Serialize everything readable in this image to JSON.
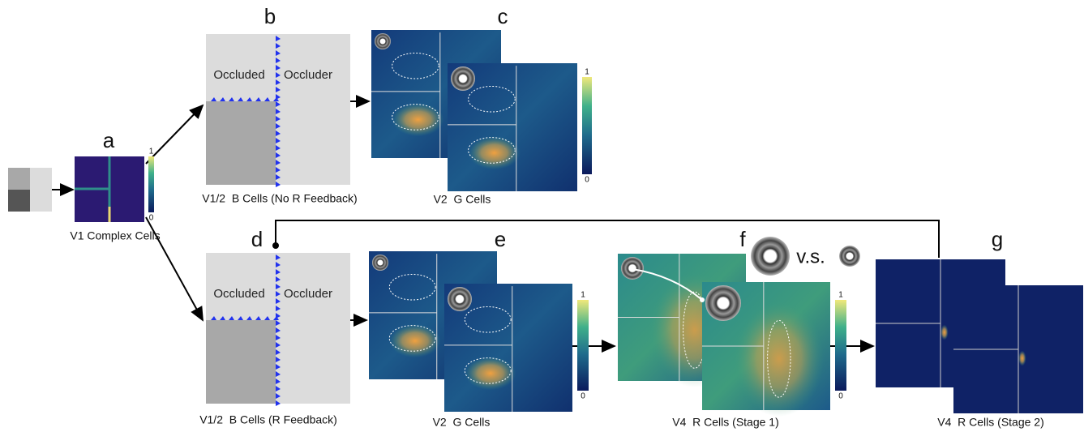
{
  "panels": [
    {
      "letter": "a",
      "caption": "V1 Complex Cells"
    },
    {
      "letter": "b",
      "caption": "V1/2  B Cells (No R Feedback)",
      "labels": [
        "Occluded",
        "Occluder"
      ]
    },
    {
      "letter": "c",
      "caption": "V2  G Cells"
    },
    {
      "letter": "d",
      "caption": "V1/2  B Cells (R Feedback)",
      "labels": [
        "Occluded",
        "Occluder"
      ]
    },
    {
      "letter": "e",
      "caption": "V2  G Cells"
    },
    {
      "letter": "f",
      "caption": "V4  R Cells (Stage 1)"
    },
    {
      "letter": "g",
      "caption": "V4  R Cells (Stage 2)"
    }
  ],
  "colorbars": [
    {
      "max": "1",
      "min": "0"
    },
    {
      "max": "1",
      "min": "0"
    },
    {
      "max": "1",
      "min": "0"
    },
    {
      "max": "1",
      "min": "0"
    }
  ],
  "comparison": "v.s."
}
